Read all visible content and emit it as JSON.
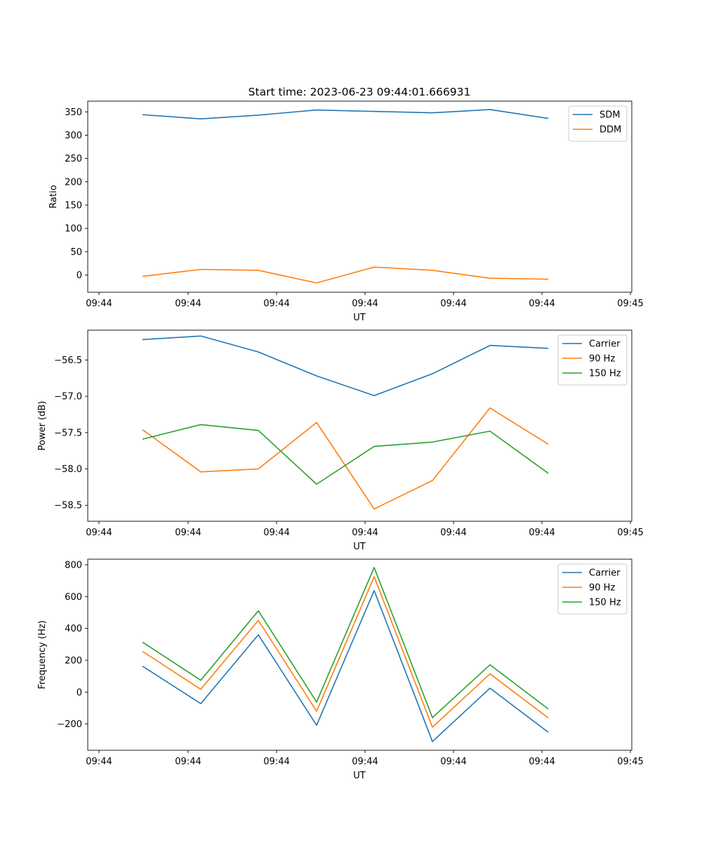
{
  "title": "Start time: 2023-06-23 09:44:01.666931",
  "colors": {
    "blue": "#1f77b4",
    "orange": "#ff7f0e",
    "green": "#2ca02c"
  },
  "chart_data": [
    {
      "type": "line",
      "title": "Start time: 2023-06-23 09:44:01.666931",
      "xlabel": "UT",
      "ylabel": "Ratio",
      "xtick_labels": [
        "09:44",
        "09:44",
        "09:44",
        "09:44",
        "09:44",
        "09:44",
        "09:45"
      ],
      "ylim": [
        -37,
        373
      ],
      "yticks": [
        0,
        50,
        100,
        150,
        200,
        250,
        300,
        350
      ],
      "ytick_labels": [
        "0",
        "50",
        "100",
        "150",
        "200",
        "250",
        "300",
        "350"
      ],
      "grid": false,
      "legend": "top-right",
      "series": [
        {
          "name": "SDM",
          "color": "#1f77b4",
          "values": [
            344,
            335,
            343,
            354,
            351,
            348,
            355,
            336
          ]
        },
        {
          "name": "DDM",
          "color": "#ff7f0e",
          "values": [
            -3,
            12,
            10,
            -17,
            17,
            10,
            -7,
            -9
          ]
        }
      ]
    },
    {
      "type": "line",
      "title": "",
      "xlabel": "UT",
      "ylabel": "Power (dB)",
      "xtick_labels": [
        "09:44",
        "09:44",
        "09:44",
        "09:44",
        "09:44",
        "09:44",
        "09:45"
      ],
      "ylim": [
        -58.72,
        -56.09
      ],
      "yticks": [
        -56.5,
        -57.0,
        -57.5,
        -58.0,
        -58.5
      ],
      "ytick_labels": [
        "−56.5",
        "−57.0",
        "−57.5",
        "−58.0",
        "−58.5"
      ],
      "grid": false,
      "legend": "top-right",
      "series": [
        {
          "name": "Carrier",
          "color": "#1f77b4",
          "values": [
            -56.22,
            -56.17,
            -56.39,
            -56.72,
            -56.99,
            -56.69,
            -56.3,
            -56.34
          ]
        },
        {
          "name": "90 Hz",
          "color": "#ff7f0e",
          "values": [
            -57.46,
            -58.04,
            -58.0,
            -57.36,
            -58.55,
            -58.16,
            -57.16,
            -57.66
          ]
        },
        {
          "name": "150 Hz",
          "color": "#2ca02c",
          "values": [
            -57.59,
            -57.39,
            -57.47,
            -58.21,
            -57.69,
            -57.63,
            -57.48,
            -58.06
          ]
        }
      ]
    },
    {
      "type": "line",
      "title": "",
      "xlabel": "UT",
      "ylabel": "Frequency (Hz)",
      "xtick_labels": [
        "09:44",
        "09:44",
        "09:44",
        "09:44",
        "09:44",
        "09:44",
        "09:45"
      ],
      "ylim": [
        -365,
        835
      ],
      "yticks": [
        -200,
        0,
        200,
        400,
        600,
        800
      ],
      "ytick_labels": [
        "−200",
        "0",
        "200",
        "400",
        "600",
        "800"
      ],
      "grid": false,
      "legend": "top-right",
      "series": [
        {
          "name": "Carrier",
          "color": "#1f77b4",
          "values": [
            163,
            -72,
            360,
            -208,
            638,
            -310,
            25,
            -252
          ]
        },
        {
          "name": "90 Hz",
          "color": "#ff7f0e",
          "values": [
            256,
            18,
            451,
            -120,
            725,
            -220,
            115,
            -162
          ]
        },
        {
          "name": "150 Hz",
          "color": "#2ca02c",
          "values": [
            314,
            75,
            511,
            -62,
            783,
            -160,
            172,
            -106
          ]
        }
      ]
    }
  ]
}
